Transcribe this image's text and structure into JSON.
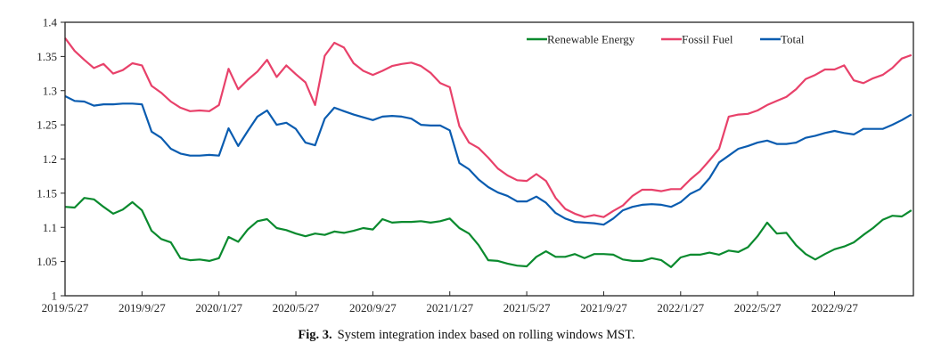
{
  "caption": {
    "label": "Fig. 3.",
    "text": "System integration index based on rolling windows MST."
  },
  "chart_data": {
    "type": "line",
    "title": "",
    "xlabel": "",
    "ylabel": "",
    "x_unit": "months since 2019/5/27",
    "xlim": [
      0,
      44.1
    ],
    "ylim": [
      1.0,
      1.4
    ],
    "grid": false,
    "legend_position": "top-right",
    "y_ticks": [
      1,
      1.05,
      1.1,
      1.15,
      1.2,
      1.25,
      1.3,
      1.35,
      1.4
    ],
    "y_tick_labels": [
      "1",
      "1.05",
      "1.1",
      "1.15",
      "1.2",
      "1.25",
      "1.3",
      "1.35",
      "1.4"
    ],
    "x_ticks": [
      0,
      4,
      8,
      12,
      16,
      20,
      24,
      28,
      32,
      36,
      40
    ],
    "x_tick_labels": [
      "2019/5/27",
      "2019/9/27",
      "2020/1/27",
      "2020/5/27",
      "2020/9/27",
      "2021/1/27",
      "2021/5/27",
      "2021/9/27",
      "2022/1/27",
      "2022/5/27",
      "2022/9/27"
    ],
    "x": [
      0,
      0.5,
      1,
      1.5,
      2,
      2.5,
      3,
      3.5,
      4,
      4.5,
      5,
      5.5,
      6,
      6.5,
      7,
      7.5,
      8,
      8.5,
      9,
      9.5,
      10,
      10.5,
      11,
      11.5,
      12,
      12.5,
      13,
      13.5,
      14,
      14.5,
      15,
      15.5,
      16,
      16.5,
      17,
      17.5,
      18,
      18.5,
      19,
      19.5,
      20,
      20.5,
      21,
      21.5,
      22,
      22.5,
      23,
      23.5,
      24,
      24.5,
      25,
      25.5,
      26,
      26.5,
      27,
      27.5,
      28,
      28.5,
      29,
      29.5,
      30,
      30.5,
      31,
      31.5,
      32,
      32.5,
      33,
      33.5,
      34,
      34.5,
      35,
      35.5,
      36,
      36.5,
      37,
      37.5,
      38,
      38.5,
      39,
      39.5,
      40,
      40.5,
      41,
      41.5,
      42,
      42.5,
      43,
      43.5,
      44
    ],
    "series": [
      {
        "name": "Renewable Energy",
        "color": "#0a8a2e",
        "values": [
          1.13,
          1.129,
          1.143,
          1.141,
          1.13,
          1.12,
          1.126,
          1.137,
          1.125,
          1.095,
          1.083,
          1.078,
          1.055,
          1.052,
          1.053,
          1.051,
          1.055,
          1.086,
          1.079,
          1.097,
          1.109,
          1.112,
          1.099,
          1.096,
          1.091,
          1.087,
          1.091,
          1.089,
          1.094,
          1.092,
          1.095,
          1.099,
          1.097,
          1.112,
          1.107,
          1.108,
          1.108,
          1.109,
          1.107,
          1.109,
          1.113,
          1.099,
          1.091,
          1.074,
          1.052,
          1.051,
          1.047,
          1.044,
          1.043,
          1.057,
          1.065,
          1.057,
          1.057,
          1.061,
          1.055,
          1.061,
          1.061,
          1.06,
          1.053,
          1.051,
          1.051,
          1.055,
          1.052,
          1.042,
          1.056,
          1.06,
          1.06,
          1.063,
          1.06,
          1.066,
          1.064,
          1.071,
          1.087,
          1.107,
          1.091,
          1.092,
          1.074,
          1.061,
          1.053,
          1.061,
          1.068,
          1.072,
          1.078,
          1.089,
          1.099,
          1.111,
          1.117,
          1.116,
          1.125
        ]
      },
      {
        "name": "Fossil Fuel",
        "color": "#e8416a",
        "values": [
          1.377,
          1.358,
          1.345,
          1.333,
          1.339,
          1.325,
          1.33,
          1.34,
          1.337,
          1.307,
          1.297,
          1.284,
          1.275,
          1.27,
          1.271,
          1.27,
          1.279,
          1.332,
          1.302,
          1.316,
          1.328,
          1.345,
          1.32,
          1.337,
          1.324,
          1.312,
          1.279,
          1.351,
          1.37,
          1.363,
          1.34,
          1.329,
          1.323,
          1.329,
          1.336,
          1.339,
          1.341,
          1.336,
          1.326,
          1.311,
          1.305,
          1.248,
          1.224,
          1.216,
          1.202,
          1.186,
          1.176,
          1.169,
          1.168,
          1.178,
          1.168,
          1.143,
          1.127,
          1.12,
          1.115,
          1.118,
          1.115,
          1.124,
          1.132,
          1.146,
          1.155,
          1.155,
          1.153,
          1.156,
          1.156,
          1.17,
          1.182,
          1.198,
          1.215,
          1.262,
          1.265,
          1.266,
          1.271,
          1.279,
          1.285,
          1.291,
          1.302,
          1.317,
          1.323,
          1.331,
          1.331,
          1.337,
          1.315,
          1.311,
          1.318,
          1.323,
          1.333,
          1.347,
          1.352
        ]
      },
      {
        "name": "Total",
        "color": "#0a5cb0",
        "values": [
          1.292,
          1.285,
          1.284,
          1.278,
          1.28,
          1.28,
          1.281,
          1.281,
          1.28,
          1.24,
          1.231,
          1.215,
          1.208,
          1.205,
          1.205,
          1.206,
          1.205,
          1.245,
          1.219,
          1.241,
          1.262,
          1.271,
          1.25,
          1.253,
          1.244,
          1.224,
          1.22,
          1.259,
          1.275,
          1.27,
          1.265,
          1.261,
          1.257,
          1.262,
          1.263,
          1.262,
          1.259,
          1.25,
          1.249,
          1.249,
          1.242,
          1.194,
          1.185,
          1.17,
          1.159,
          1.151,
          1.146,
          1.138,
          1.138,
          1.145,
          1.136,
          1.121,
          1.113,
          1.108,
          1.107,
          1.106,
          1.104,
          1.113,
          1.125,
          1.13,
          1.133,
          1.134,
          1.133,
          1.13,
          1.137,
          1.149,
          1.156,
          1.172,
          1.195,
          1.205,
          1.215,
          1.219,
          1.224,
          1.227,
          1.222,
          1.222,
          1.224,
          1.231,
          1.234,
          1.238,
          1.241,
          1.238,
          1.236,
          1.244,
          1.244,
          1.244,
          1.25,
          1.257,
          1.265
        ]
      }
    ]
  }
}
